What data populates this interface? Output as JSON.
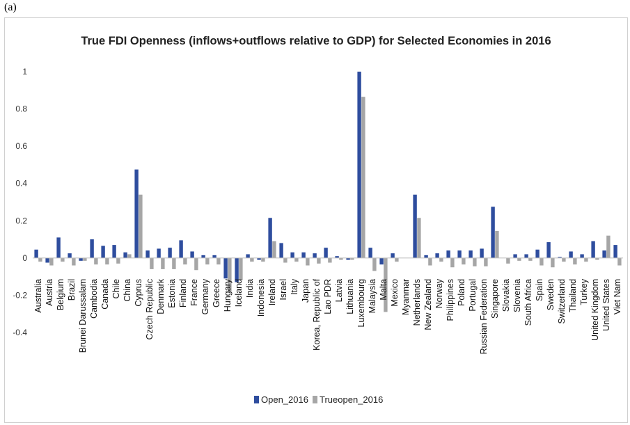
{
  "panel_label": "(a)",
  "colors": {
    "Open_2016": "#2e4d9e",
    "Trueopen_2016": "#a6a6a6",
    "axis": "#bfbfbf"
  },
  "chart_data": {
    "type": "bar",
    "title": "True FDI Openness (inflows+outflows relative to GDP) for Selected Economies in 2016",
    "xlabel": "",
    "ylabel": "",
    "ylim": [
      -0.4,
      1
    ],
    "yticks": [
      1,
      0.8,
      0.6,
      0.4,
      0.2,
      0,
      -0.2,
      -0.4
    ],
    "ytick_labels": [
      "1",
      "0.8",
      "0.6",
      "0.4",
      "0.2",
      "0",
      "-0.2",
      "-0.4"
    ],
    "grid": false,
    "legend_position": "bottom",
    "categories": [
      "Australia",
      "Austria",
      "Belgium",
      "Brazil",
      "Brunei Darussalam",
      "Cambodia",
      "Canada",
      "Chile",
      "China",
      "Cyprus",
      "Czech Republic",
      "Denmark",
      "Estonia",
      "Finland",
      "France",
      "Germany",
      "Greece",
      "Hungary",
      "Iceland",
      "India",
      "Indonesia",
      "Ireland",
      "Israel",
      "Italy",
      "Japan",
      "Korea, Republic of",
      "Lao PDR",
      "Latvia",
      "Lithuania",
      "Luxembourg",
      "Malaysia",
      "Malta",
      "Mexico",
      "Myanmar",
      "Netherlands",
      "New Zealand",
      "Norway",
      "Philippines",
      "Poland",
      "Portugal",
      "Russian Federation",
      "Singapore",
      "Slovakia",
      "Slovenia",
      "South Africa",
      "Spain",
      "Sweden",
      "Switzerland",
      "Thailand",
      "Turkey",
      "United Kingdom",
      "United States",
      "Viet Nam"
    ],
    "series": [
      {
        "name": "Open_2016",
        "values": [
          0.045,
          -0.025,
          0.11,
          0.025,
          -0.015,
          0.1,
          0.065,
          0.07,
          0.03,
          0.475,
          0.04,
          0.05,
          0.055,
          0.095,
          0.035,
          0.015,
          0.015,
          -0.11,
          -0.13,
          0.02,
          -0.01,
          0.215,
          0.08,
          0.03,
          0.03,
          0.025,
          0.055,
          0.01,
          -0.01,
          1.0,
          0.055,
          -0.035,
          0.025,
          0.0,
          0.34,
          0.015,
          0.025,
          0.04,
          0.04,
          0.04,
          0.05,
          0.275,
          0.0,
          0.02,
          0.02,
          0.045,
          0.085,
          0.005,
          0.035,
          0.02,
          0.09,
          0.04,
          0.07
        ]
      },
      {
        "name": "Trueopen_2016",
        "values": [
          -0.02,
          -0.04,
          -0.02,
          -0.04,
          -0.015,
          -0.035,
          -0.035,
          -0.03,
          0.02,
          0.34,
          -0.06,
          -0.06,
          -0.06,
          -0.035,
          -0.065,
          -0.035,
          -0.035,
          -0.18,
          -0.12,
          -0.02,
          -0.02,
          0.09,
          -0.025,
          -0.02,
          -0.04,
          -0.03,
          -0.025,
          -0.01,
          -0.01,
          0.865,
          -0.07,
          -0.29,
          -0.02,
          0.0,
          0.215,
          -0.04,
          -0.02,
          -0.05,
          -0.035,
          -0.045,
          -0.045,
          0.145,
          -0.03,
          -0.015,
          -0.015,
          -0.04,
          -0.05,
          -0.02,
          -0.035,
          -0.02,
          -0.01,
          0.12,
          -0.04
        ]
      }
    ]
  }
}
